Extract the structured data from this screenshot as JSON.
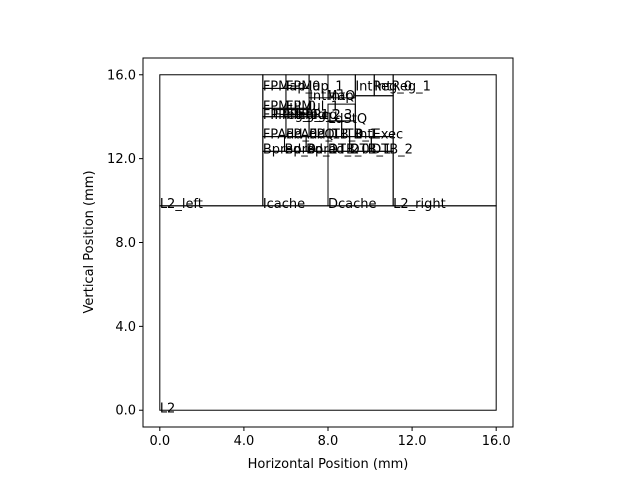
{
  "chart_data": {
    "type": "floorplan",
    "title": "",
    "xlabel": "Horizontal Position (mm)",
    "ylabel": "Vertical Position (mm)",
    "xlim": [
      -0.8,
      16.8
    ],
    "ylim": [
      -0.8,
      16.8
    ],
    "x_ticks": [
      0,
      4,
      8,
      12,
      16
    ],
    "y_ticks": [
      0,
      4,
      8,
      12,
      16
    ],
    "x_tick_labels": [
      "0.0",
      "4.0",
      "8.0",
      "12.0",
      "16.0"
    ],
    "y_tick_labels": [
      "0.0",
      "4.0",
      "8.0",
      "12.0",
      "16.0"
    ],
    "blocks": [
      {
        "name": "L2",
        "x": 0,
        "y": 0,
        "w": 16,
        "h": 9.75
      },
      {
        "name": "L2_left",
        "x": 0,
        "y": 9.75,
        "w": 4.9,
        "h": 6.25
      },
      {
        "name": "Icache",
        "x": 4.9,
        "y": 9.75,
        "w": 3.1,
        "h": 2.6
      },
      {
        "name": "Dcache",
        "x": 8.0,
        "y": 9.75,
        "w": 3.1,
        "h": 2.6
      },
      {
        "name": "L2_right",
        "x": 11.1,
        "y": 9.75,
        "w": 4.9,
        "h": 6.25
      },
      {
        "name": "Bpred_0",
        "x": 4.9,
        "y": 12.35,
        "w": 1.03,
        "h": 0.7
      },
      {
        "name": "Bpred_1",
        "x": 5.93,
        "y": 12.35,
        "w": 1.03,
        "h": 0.7
      },
      {
        "name": "Bpred_2",
        "x": 6.96,
        "y": 12.35,
        "w": 1.04,
        "h": 0.7
      },
      {
        "name": "DTB_0",
        "x": 8.0,
        "y": 12.35,
        "w": 1.03,
        "h": 0.7
      },
      {
        "name": "DTB_1",
        "x": 9.03,
        "y": 12.35,
        "w": 1.03,
        "h": 0.7
      },
      {
        "name": "DTB_2",
        "x": 10.06,
        "y": 12.35,
        "w": 1.04,
        "h": 0.7
      },
      {
        "name": "FPAdd_0",
        "x": 4.9,
        "y": 13.05,
        "w": 1.1,
        "h": 0.95
      },
      {
        "name": "FPAdd_1",
        "x": 6.0,
        "y": 13.05,
        "w": 1.1,
        "h": 0.95
      },
      {
        "name": "FPReg_0",
        "x": 4.9,
        "y": 14.0,
        "w": 0.55,
        "h": 0.4
      },
      {
        "name": "FPReg_1",
        "x": 5.45,
        "y": 14.0,
        "w": 0.55,
        "h": 0.4
      },
      {
        "name": "FPReg_2",
        "x": 6.0,
        "y": 14.0,
        "w": 0.55,
        "h": 0.4
      },
      {
        "name": "FPReg_3",
        "x": 6.55,
        "y": 14.0,
        "w": 0.55,
        "h": 0.4
      },
      {
        "name": "FPMul_0",
        "x": 4.9,
        "y": 14.4,
        "w": 1.1,
        "h": 0.95
      },
      {
        "name": "FPMul_1",
        "x": 6.0,
        "y": 14.4,
        "w": 1.1,
        "h": 0.95
      },
      {
        "name": "FPMap_0",
        "x": 4.9,
        "y": 15.35,
        "w": 1.1,
        "h": 0.65
      },
      {
        "name": "FPMap_1",
        "x": 6.0,
        "y": 15.35,
        "w": 1.1,
        "h": 0.65
      },
      {
        "name": "IntMap",
        "x": 7.1,
        "y": 14.9,
        "w": 0.9,
        "h": 1.1
      },
      {
        "name": "IntQ",
        "x": 8.0,
        "y": 14.9,
        "w": 1.3,
        "h": 1.1
      },
      {
        "name": "IntReg_0",
        "x": 9.3,
        "y": 15.0,
        "w": 0.9,
        "h": 1.0
      },
      {
        "name": "IntReg_1",
        "x": 10.2,
        "y": 15.0,
        "w": 0.9,
        "h": 1.0
      },
      {
        "name": "FPQ",
        "x": 7.1,
        "y": 13.05,
        "w": 0.9,
        "h": 0.95
      },
      {
        "name": "LdStQ",
        "x": 8.0,
        "y": 13.8,
        "w": 1.3,
        "h": 0.8
      },
      {
        "name": "ITB_0",
        "x": 8.0,
        "y": 13.05,
        "w": 0.65,
        "h": 0.75
      },
      {
        "name": "ITB_1",
        "x": 8.65,
        "y": 13.05,
        "w": 0.65,
        "h": 0.75
      },
      {
        "name": "IntExec",
        "x": 9.3,
        "y": 13.05,
        "w": 1.8,
        "h": 1.95
      }
    ],
    "labels": [
      {
        "text": "L2",
        "x": 0.0,
        "y": -0.1
      },
      {
        "text": "L2_left",
        "x": 0.0,
        "y": 9.65
      },
      {
        "text": "Icache",
        "x": 4.9,
        "y": 9.65
      },
      {
        "text": "Dcache",
        "x": 8.0,
        "y": 9.65
      },
      {
        "text": "L2_right",
        "x": 11.1,
        "y": 9.65
      },
      {
        "text": "Bpred_0",
        "x": 4.9,
        "y": 12.25
      },
      {
        "text": "Bpred_1",
        "x": 5.93,
        "y": 12.25
      },
      {
        "text": "Bpred_2",
        "x": 6.96,
        "y": 12.25
      },
      {
        "text": "DTB_0",
        "x": 8.0,
        "y": 12.25
      },
      {
        "text": "DTB_1",
        "x": 9.03,
        "y": 12.25
      },
      {
        "text": "DTB_2",
        "x": 10.06,
        "y": 12.25
      },
      {
        "text": "FPAdd_0",
        "x": 4.9,
        "y": 12.95
      },
      {
        "text": "FPAdd_1",
        "x": 6.0,
        "y": 12.95
      },
      {
        "text": "FPQ",
        "x": 7.1,
        "y": 12.95
      },
      {
        "text": "ITB_0",
        "x": 8.0,
        "y": 12.95
      },
      {
        "text": "ITB_1",
        "x": 8.65,
        "y": 12.95
      },
      {
        "text": "IntExec",
        "x": 9.3,
        "y": 12.95
      },
      {
        "text": "FPReg_0",
        "x": 4.9,
        "y": 13.9
      },
      {
        "text": "FPReg_1",
        "x": 5.45,
        "y": 13.9
      },
      {
        "text": "FPReg_2",
        "x": 6.0,
        "y": 13.9
      },
      {
        "text": "FPReg_3",
        "x": 6.55,
        "y": 13.9
      },
      {
        "text": "LdStQ",
        "x": 8.0,
        "y": 13.7
      },
      {
        "text": "FPMul_0",
        "x": 4.9,
        "y": 14.3
      },
      {
        "text": "FPMul_1",
        "x": 6.0,
        "y": 14.3
      },
      {
        "text": "IntMap",
        "x": 7.1,
        "y": 14.8
      },
      {
        "text": "IntQ",
        "x": 8.0,
        "y": 14.8
      },
      {
        "text": "FPMap_0",
        "x": 4.9,
        "y": 15.25
      },
      {
        "text": "FPMap_1",
        "x": 6.0,
        "y": 15.25
      },
      {
        "text": "IntReg_0",
        "x": 9.3,
        "y": 15.25
      },
      {
        "text": "IntReg_1",
        "x": 10.2,
        "y": 15.25
      }
    ],
    "grid": false,
    "legend": "none"
  }
}
